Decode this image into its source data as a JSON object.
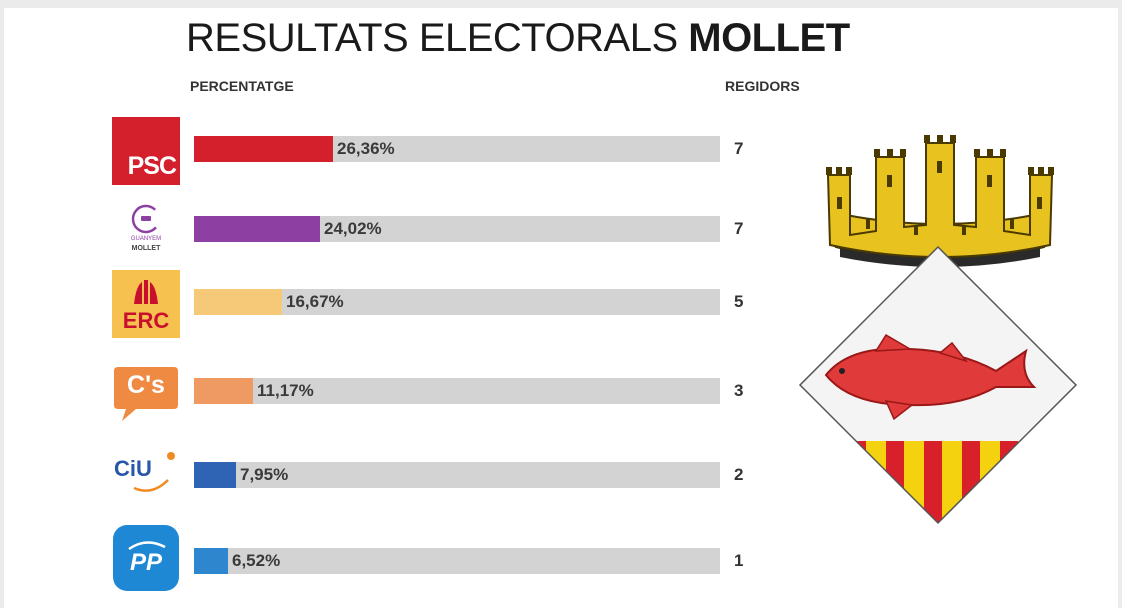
{
  "chart_data": {
    "type": "bar",
    "title_plain": "RESULTATS ELECTORALS",
    "title_bold": "MOLLET",
    "col_left": "PERCENTATGE",
    "col_right": "REGIDORS",
    "xlim": [
      0,
      100
    ],
    "categories": [
      "PSC",
      "Guanyem Mollet",
      "ERC",
      "C's",
      "CiU",
      "PP"
    ],
    "values": [
      26.36,
      24.02,
      16.67,
      11.17,
      7.95,
      6.52
    ],
    "value_labels": [
      "26,36%",
      "24,02%",
      "16,67%",
      "11,17%",
      "7,95%",
      "6,52%"
    ],
    "seats": [
      "7",
      "7",
      "5",
      "3",
      "2",
      "1"
    ],
    "colors": [
      "#d41f2c",
      "#8e3fa2",
      "#f5c978",
      "#ef9a63",
      "#2f63b3",
      "#2e86cf"
    ]
  },
  "logos": {
    "psc": "PSC",
    "guanyem_top": "GUANYEM",
    "guanyem_bottom": "MOLLET",
    "erc": "ERC",
    "cs": "C's",
    "ciu": "CiU",
    "pp": "PP"
  },
  "icons": {
    "crest": "mollet-coat-of-arms-icon"
  }
}
